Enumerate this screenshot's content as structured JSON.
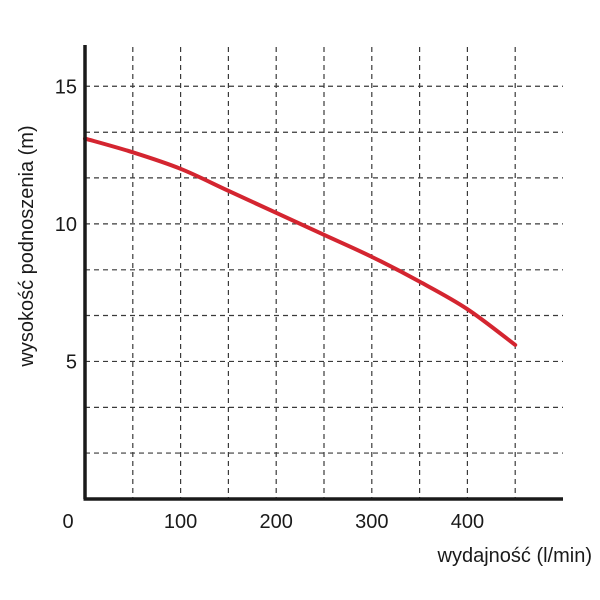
{
  "chart_data": {
    "type": "line",
    "xlabel": "wydajność (l/min)",
    "ylabel": "wysokość podnoszenia (m)",
    "xlim": [
      0,
      500
    ],
    "ylim": [
      0,
      16.5
    ],
    "x_ticks": [
      100,
      200,
      300,
      400
    ],
    "y_ticks": [
      5,
      10,
      15
    ],
    "origin_label": "0",
    "x_grid": [
      50,
      100,
      150,
      200,
      250,
      300,
      350,
      400,
      450
    ],
    "y_grid": [
      1.67,
      3.33,
      5,
      6.67,
      8.33,
      10,
      11.67,
      13.33,
      15
    ],
    "grid": true,
    "series": [
      {
        "color": "#d42530",
        "x": [
          0,
          50,
          100,
          150,
          200,
          250,
          300,
          350,
          400,
          450
        ],
        "y": [
          13.1,
          12.6,
          12.0,
          11.2,
          10.4,
          9.6,
          8.8,
          7.9,
          6.9,
          5.6
        ]
      }
    ]
  }
}
